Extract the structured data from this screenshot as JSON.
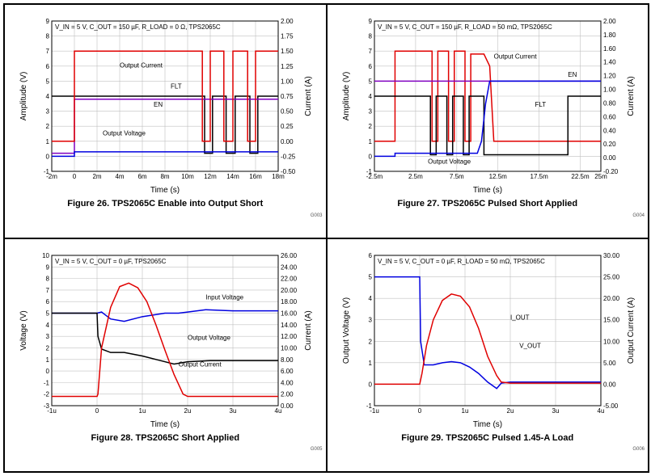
{
  "layout": {
    "cols": 2,
    "rows": 2,
    "cell_border": "#000000",
    "outer_border": "#000000"
  },
  "common_styling": {
    "background_color": "#ffffff",
    "grid_color": "#c0c0c0",
    "axis_color": "#000000",
    "tick_fontsize": 8,
    "label_fontsize": 10,
    "caption_fontsize": 11,
    "caption_fontweight": "bold",
    "line_width": 1.5
  },
  "figures": [
    {
      "id": "G003",
      "caption": "Figure 26. TPS2065C Enable into Output Short",
      "conditions": "V_IN = 5 V, C_OUT = 150 µF, R_LOAD = 0 Ω,  TPS2065C",
      "type": "oscilloscope-line",
      "x": {
        "label": "Time (s)",
        "lim": [
          -2,
          18
        ],
        "ticks": [
          -2,
          0,
          2,
          4,
          6,
          8,
          10,
          12,
          14,
          16,
          18
        ],
        "tick_labels": [
          "-2m",
          "0",
          "2m",
          "4m",
          "6m",
          "8m",
          "10m",
          "12m",
          "14m",
          "16m",
          "18m"
        ]
      },
      "y_left": {
        "label": "Amplitude (V)",
        "lim": [
          -1,
          9
        ],
        "ticks": [
          -1,
          0,
          1,
          2,
          3,
          4,
          5,
          6,
          7,
          8,
          9
        ]
      },
      "y_right": {
        "label": "Current (A)",
        "lim": [
          -0.5,
          2.0
        ],
        "ticks": [
          -0.5,
          -0.25,
          0,
          0.25,
          0.5,
          0.75,
          1.0,
          1.25,
          1.5,
          1.75,
          2.0
        ]
      },
      "grid": true,
      "series": [
        {
          "name": "FLT",
          "axis": "left",
          "color": "#000000",
          "label_xy": [
            8.5,
            4.5
          ],
          "pts": [
            [
              -2,
              4
            ],
            [
              0,
              4
            ],
            [
              0,
              4
            ],
            [
              11.5,
              4
            ],
            [
              11.5,
              0.2
            ],
            [
              12.2,
              0.2
            ],
            [
              12.2,
              4
            ],
            [
              13.4,
              4
            ],
            [
              13.4,
              0.2
            ],
            [
              14.2,
              0.2
            ],
            [
              14.2,
              4
            ],
            [
              15.5,
              4
            ],
            [
              15.5,
              0.2
            ],
            [
              16.2,
              0.2
            ],
            [
              16.2,
              4
            ],
            [
              18,
              4
            ]
          ]
        },
        {
          "name": "EN",
          "axis": "left",
          "color": "#8000c0",
          "label_xy": [
            7,
            3.3
          ],
          "pts": [
            [
              -2,
              0.2
            ],
            [
              0,
              0.2
            ],
            [
              0,
              3.8
            ],
            [
              18,
              3.8
            ]
          ]
        },
        {
          "name": "Output Voltage",
          "axis": "left",
          "color": "#0000e0",
          "label_xy": [
            2.5,
            1.4
          ],
          "pts": [
            [
              -2,
              0
            ],
            [
              0,
              0
            ],
            [
              0,
              0.3
            ],
            [
              18,
              0.3
            ]
          ]
        },
        {
          "name": "Output Current",
          "axis": "left",
          "color": "#e00000",
          "label_xy": [
            4,
            5.9
          ],
          "pts": [
            [
              -2,
              1
            ],
            [
              0,
              1
            ],
            [
              0,
              7
            ],
            [
              11.3,
              7
            ],
            [
              11.3,
              1
            ],
            [
              12.0,
              1
            ],
            [
              12.0,
              7
            ],
            [
              13.2,
              7
            ],
            [
              13.2,
              1
            ],
            [
              14.0,
              1
            ],
            [
              14.0,
              7
            ],
            [
              15.3,
              7
            ],
            [
              15.3,
              1
            ],
            [
              16.0,
              1
            ],
            [
              16.0,
              7
            ],
            [
              18,
              7
            ]
          ]
        }
      ]
    },
    {
      "id": "G004",
      "caption": "Figure 27. TPS2065C Pulsed Short Applied",
      "conditions": "V_IN = 5 V, C_OUT = 150 µF, R_LOAD = 50 mΩ, TPS2065C",
      "type": "oscilloscope-line",
      "x": {
        "label": "Time (s)",
        "lim": [
          -2.5,
          25
        ],
        "ticks": [
          -2.5,
          2.5,
          7.5,
          12.5,
          17.5,
          22.5,
          25
        ],
        "tick_labels": [
          "-2.5m",
          "2.5m",
          "7.5m",
          "12.5m",
          "17.5m",
          "22.5m",
          "25m"
        ]
      },
      "y_left": {
        "label": "Amplitude (V)",
        "lim": [
          -1,
          9
        ],
        "ticks": [
          -1,
          0,
          1,
          2,
          3,
          4,
          5,
          6,
          7,
          8,
          9
        ]
      },
      "y_right": {
        "label": "Current (A)",
        "lim": [
          -0.2,
          2.0
        ],
        "ticks": [
          -0.2,
          0,
          0.2,
          0.4,
          0.6,
          0.8,
          1.0,
          1.2,
          1.4,
          1.6,
          1.8,
          2.0
        ]
      },
      "grid": true,
      "series": [
        {
          "name": "Output Current",
          "axis": "left",
          "color": "#e00000",
          "label_xy": [
            12,
            6.5
          ],
          "pts": [
            [
              -2.5,
              1
            ],
            [
              0,
              1
            ],
            [
              0,
              7
            ],
            [
              4.5,
              7
            ],
            [
              4.5,
              1
            ],
            [
              5.2,
              1
            ],
            [
              5.2,
              7
            ],
            [
              6.5,
              7
            ],
            [
              6.5,
              1
            ],
            [
              7.2,
              1
            ],
            [
              7.2,
              7
            ],
            [
              8.5,
              7
            ],
            [
              8.5,
              1
            ],
            [
              9.2,
              1
            ],
            [
              9.2,
              6.8
            ],
            [
              10.8,
              6.8
            ],
            [
              11.5,
              6.0
            ],
            [
              12.0,
              1
            ],
            [
              25,
              1
            ]
          ]
        },
        {
          "name": "EN",
          "axis": "left",
          "color": "#8000c0",
          "label_xy": [
            21,
            5.3
          ],
          "pts": [
            [
              -2.5,
              5
            ],
            [
              25,
              5
            ]
          ]
        },
        {
          "name": "FLT",
          "axis": "left",
          "color": "#000000",
          "label_xy": [
            17,
            3.3
          ],
          "pts": [
            [
              -2.5,
              4
            ],
            [
              0,
              4
            ],
            [
              0,
              4
            ],
            [
              4.3,
              4
            ],
            [
              4.3,
              0.1
            ],
            [
              5.0,
              0.1
            ],
            [
              5.0,
              4
            ],
            [
              6.3,
              4
            ],
            [
              6.3,
              0.1
            ],
            [
              7.0,
              0.1
            ],
            [
              7.0,
              4
            ],
            [
              8.3,
              4
            ],
            [
              8.3,
              0.1
            ],
            [
              9.0,
              0.1
            ],
            [
              9.0,
              4
            ],
            [
              10.8,
              4
            ],
            [
              10.8,
              0.1
            ],
            [
              21,
              0.1
            ],
            [
              21,
              4
            ],
            [
              25,
              4
            ]
          ]
        },
        {
          "name": "Output Voltage",
          "axis": "left",
          "color": "#0000e0",
          "label_xy": [
            4,
            -0.5
          ],
          "pts": [
            [
              -2.5,
              0
            ],
            [
              0,
              0
            ],
            [
              0,
              0.2
            ],
            [
              9.5,
              0.2
            ],
            [
              9.5,
              0.2
            ],
            [
              10.0,
              0.2
            ],
            [
              10.5,
              1.0
            ],
            [
              11.0,
              3.5
            ],
            [
              11.5,
              5.0
            ],
            [
              12.0,
              5.0
            ],
            [
              25,
              5.0
            ]
          ]
        }
      ]
    },
    {
      "id": "G005",
      "caption": "Figure 28. TPS2065C Short Applied",
      "conditions": "V_IN = 5 V, C_OUT = 0 µF,  TPS2065C",
      "type": "oscilloscope-line",
      "x": {
        "label": "Time (s)",
        "lim": [
          -1,
          4
        ],
        "ticks": [
          -1,
          0,
          1,
          2,
          3,
          4
        ],
        "tick_labels": [
          "-1u",
          "0",
          "1u",
          "2u",
          "3u",
          "4u"
        ]
      },
      "y_left": {
        "label": "Voltage (V)",
        "lim": [
          -3,
          10
        ],
        "ticks": [
          -3,
          -2,
          -1,
          0,
          1,
          2,
          3,
          4,
          5,
          6,
          7,
          8,
          9,
          10
        ]
      },
      "y_right": {
        "label": "Current (A)",
        "lim": [
          0,
          26
        ],
        "ticks": [
          0,
          2,
          4,
          6,
          8,
          10,
          12,
          14,
          16,
          18,
          20,
          22,
          24,
          26
        ]
      },
      "grid": true,
      "series": [
        {
          "name": "Input Voltage",
          "axis": "left",
          "color": "#0000e0",
          "label_xy": [
            2.4,
            6.2
          ],
          "pts": [
            [
              -1,
              5.0
            ],
            [
              0,
              5.0
            ],
            [
              0.1,
              5.1
            ],
            [
              0.3,
              4.5
            ],
            [
              0.6,
              4.3
            ],
            [
              1.0,
              4.7
            ],
            [
              1.5,
              5.0
            ],
            [
              1.8,
              5.0
            ],
            [
              2.0,
              5.1
            ],
            [
              2.4,
              5.3
            ],
            [
              3.0,
              5.2
            ],
            [
              3.5,
              5.2
            ],
            [
              4.0,
              5.2
            ]
          ]
        },
        {
          "name": "Output Voltage",
          "axis": "left",
          "color": "#000000",
          "label_xy": [
            2.0,
            2.7
          ],
          "pts": [
            [
              -1,
              5.0
            ],
            [
              0,
              5.0
            ],
            [
              0.02,
              3.0
            ],
            [
              0.1,
              1.9
            ],
            [
              0.3,
              1.6
            ],
            [
              0.6,
              1.6
            ],
            [
              1.0,
              1.3
            ],
            [
              1.4,
              0.9
            ],
            [
              1.7,
              0.6
            ],
            [
              2.0,
              0.8
            ],
            [
              2.5,
              0.9
            ],
            [
              3.0,
              0.9
            ],
            [
              3.5,
              0.9
            ],
            [
              4.0,
              0.9
            ]
          ]
        },
        {
          "name": "Output Current",
          "axis": "left",
          "color": "#e00000",
          "label_xy": [
            1.8,
            0.4
          ],
          "pts": [
            [
              -1,
              -2.2
            ],
            [
              0,
              -2.2
            ],
            [
              0.02,
              -2.0
            ],
            [
              0.1,
              2.0
            ],
            [
              0.3,
              5.5
            ],
            [
              0.5,
              7.3
            ],
            [
              0.7,
              7.6
            ],
            [
              0.9,
              7.2
            ],
            [
              1.1,
              6.0
            ],
            [
              1.3,
              4.0
            ],
            [
              1.5,
              1.8
            ],
            [
              1.7,
              -0.3
            ],
            [
              1.9,
              -2.0
            ],
            [
              2.0,
              -2.2
            ],
            [
              4.0,
              -2.2
            ]
          ]
        }
      ]
    },
    {
      "id": "G006",
      "caption": "Figure 29. TPS2065C Pulsed 1.45-A Load",
      "conditions": "V_IN = 5 V, C_OUT = 0 µF, R_LOAD = 50 mΩ,  TPS2065C",
      "type": "oscilloscope-line",
      "x": {
        "label": "Time (s)",
        "lim": [
          -1,
          4
        ],
        "ticks": [
          -1,
          0,
          1,
          2,
          3,
          4
        ],
        "tick_labels": [
          "-1u",
          "0",
          "1u",
          "2u",
          "3u",
          "4u"
        ]
      },
      "y_left": {
        "label": "Output Voltage (V)",
        "lim": [
          -1,
          6
        ],
        "ticks": [
          -1,
          0,
          1,
          2,
          3,
          4,
          5,
          6
        ]
      },
      "y_right": {
        "label": "Output Current (A)",
        "lim": [
          -5,
          30
        ],
        "ticks": [
          -5,
          0,
          5,
          10,
          15,
          20,
          25,
          30
        ]
      },
      "grid": true,
      "series": [
        {
          "name": "V_OUT",
          "axis": "left",
          "color": "#0000e0",
          "label_xy": [
            2.2,
            1.7
          ],
          "pts": [
            [
              -1,
              5.0
            ],
            [
              0,
              5.0
            ],
            [
              0.02,
              2.0
            ],
            [
              0.1,
              0.9
            ],
            [
              0.3,
              0.9
            ],
            [
              0.5,
              1.0
            ],
            [
              0.7,
              1.05
            ],
            [
              0.9,
              1.0
            ],
            [
              1.1,
              0.8
            ],
            [
              1.3,
              0.5
            ],
            [
              1.5,
              0.1
            ],
            [
              1.7,
              -0.2
            ],
            [
              1.8,
              0.05
            ],
            [
              2.0,
              0.1
            ],
            [
              4.0,
              0.1
            ]
          ]
        },
        {
          "name": "I_OUT",
          "axis": "left",
          "color": "#e00000",
          "label_xy": [
            2.0,
            3.0
          ],
          "pts": [
            [
              -1,
              0.0
            ],
            [
              0,
              0.0
            ],
            [
              0.05,
              0.5
            ],
            [
              0.15,
              1.8
            ],
            [
              0.3,
              3.0
            ],
            [
              0.5,
              3.9
            ],
            [
              0.7,
              4.2
            ],
            [
              0.9,
              4.1
            ],
            [
              1.1,
              3.6
            ],
            [
              1.3,
              2.6
            ],
            [
              1.5,
              1.3
            ],
            [
              1.7,
              0.4
            ],
            [
              1.8,
              0.1
            ],
            [
              2.0,
              0.05
            ],
            [
              4.0,
              0.05
            ]
          ]
        }
      ]
    }
  ]
}
